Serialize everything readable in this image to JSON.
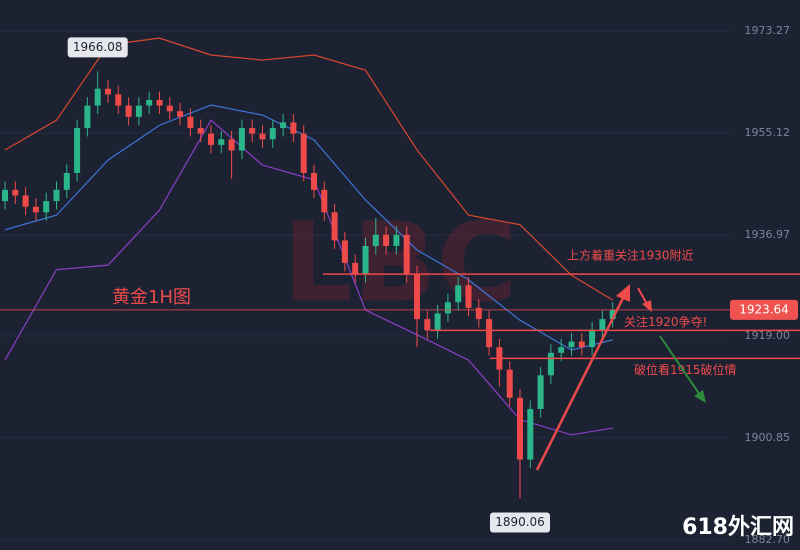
{
  "chart_data": {
    "type": "candlestick",
    "title": "黄金1H图",
    "watermark": "LBC",
    "site": "618外汇网",
    "up_color": "#2bb58a",
    "down_color": "#ef4a4a",
    "ylim": [
      1880.9,
      1978.79
    ],
    "yticks": [
      1973.27,
      1955.12,
      1936.97,
      {
        "value": 1919,
        "label": "1919.00"
      },
      1900.85,
      {
        "value": 1882.7,
        "label": "1882.70"
      }
    ],
    "open": [
      1943,
      1945,
      1944,
      1942,
      1941,
      1943,
      1945,
      1948,
      1956,
      1960,
      1963,
      1962,
      1960,
      1958,
      1960,
      1961,
      1960,
      1959,
      1958,
      1956,
      1955,
      1953,
      1954,
      1952,
      1956,
      1955,
      1954,
      1956,
      1957,
      1955,
      1948,
      1945,
      1941,
      1936,
      1932,
      1930,
      1935,
      1937,
      1935,
      1937,
      1930,
      1922,
      1920,
      1923,
      1925,
      1928,
      1924,
      1922,
      1917,
      1913,
      1908,
      1897,
      1906,
      1912,
      1916,
      1917,
      1918,
      1917,
      1920,
      1922
    ],
    "high": [
      1946.5,
      1946.5,
      1945.5,
      1943.5,
      1944.5,
      1946.5,
      1949.5,
      1957.5,
      1961.5,
      1966.08,
      1964.5,
      1963.5,
      1961.5,
      1961.5,
      1962.5,
      1962.5,
      1961.5,
      1960.5,
      1959.5,
      1957.5,
      1956.5,
      1955.5,
      1955.5,
      1957.5,
      1957.5,
      1956.5,
      1957.5,
      1958.5,
      1958.5,
      1956.5,
      1949.5,
      1946.5,
      1942.5,
      1937.5,
      1933.5,
      1936.5,
      1940,
      1938.5,
      1938.5,
      1938.5,
      1931.5,
      1923.5,
      1924.5,
      1926.5,
      1929.5,
      1929.5,
      1925.5,
      1923.5,
      1918.5,
      1914.5,
      1909.5,
      1907.5,
      1913.5,
      1917.5,
      1918.5,
      1919.5,
      1919.5,
      1921.5,
      1923.5,
      1925
    ],
    "low": [
      1941.5,
      1942.5,
      1940.5,
      1939.5,
      1939.5,
      1941.5,
      1943.5,
      1946.5,
      1954.5,
      1958.5,
      1960.5,
      1958.5,
      1956.5,
      1956.5,
      1958.5,
      1958.5,
      1957.5,
      1956.5,
      1954.5,
      1953.5,
      1951.5,
      1951.5,
      1947,
      1950.5,
      1953.5,
      1952.5,
      1952.5,
      1954.5,
      1953.5,
      1946.5,
      1943.5,
      1939.5,
      1934.5,
      1930.5,
      1928.5,
      1928.5,
      1933.5,
      1933.5,
      1933.5,
      1928.5,
      1917,
      1918.5,
      1918.5,
      1921.5,
      1923.5,
      1922.5,
      1920.5,
      1915.5,
      1910,
      1906.5,
      1890.06,
      1895.5,
      1904.5,
      1910.5,
      1914.5,
      1915.5,
      1915.5,
      1915.5,
      1918.5,
      1920.5
    ],
    "close": [
      1945,
      1944,
      1942,
      1941,
      1943,
      1945,
      1948,
      1956,
      1960,
      1963,
      1962,
      1960,
      1958,
      1960,
      1961,
      1960,
      1959,
      1958,
      1956,
      1955,
      1953,
      1954,
      1952,
      1956,
      1955,
      1954,
      1956,
      1957,
      1955,
      1948,
      1945,
      1941,
      1936,
      1932,
      1930,
      1935,
      1937,
      1935,
      1937,
      1930,
      1922,
      1920,
      1923,
      1925,
      1928,
      1924,
      1922,
      1917,
      1913,
      1908,
      1897,
      1906,
      1912,
      1916,
      1917,
      1918,
      1917,
      1920,
      1922,
      1923.64
    ],
    "bands": {
      "x": [
        0,
        5,
        10,
        15,
        20,
        25,
        30,
        35,
        40,
        45,
        50,
        55,
        59
      ],
      "series": [
        {
          "color": "#d9482f",
          "values": [
            1952.1,
            1957.4,
            1970.8,
            1972,
            1969,
            1968.1,
            1969,
            1966.3,
            1952.1,
            1940.5,
            1938.8,
            1929.8,
            1925.4
          ]
        },
        {
          "color": "#3d74d6",
          "values": [
            1937.9,
            1940.5,
            1950.3,
            1956.5,
            1960.1,
            1958.3,
            1953.9,
            1943.2,
            1934.3,
            1929,
            1921.8,
            1916.5,
            1918.3
          ]
        },
        {
          "color": "#8b3fc8",
          "values": [
            1914.7,
            1930.8,
            1931.6,
            1941.4,
            1957.4,
            1949.4,
            1946.8,
            1923.6,
            1919.2,
            1914.7,
            1904.1,
            1901.4,
            1902.6
          ]
        }
      ]
    },
    "annotations": [
      {
        "text": "上方着重关注1930附近",
        "level": 1930
      },
      {
        "text": "关注1920争夺!",
        "level": 1920
      },
      {
        "text": "破位看1915破位情",
        "level": 1915
      }
    ]
  }
}
